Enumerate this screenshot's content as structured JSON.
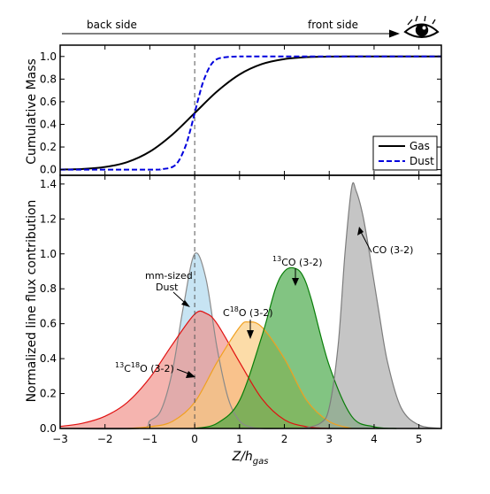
{
  "header": {
    "back_label": "back side",
    "front_label": "front side",
    "eye_icon": "eye-icon"
  },
  "chart_data": [
    {
      "type": "line",
      "panel": "top",
      "ylabel": "Cumulative Mass",
      "xlim": [
        -3,
        5.5
      ],
      "ylim": [
        -0.05,
        1.1
      ],
      "yticks": [
        "0.0",
        "0.2",
        "0.4",
        "0.6",
        "0.8",
        "1.0"
      ],
      "grid": false,
      "legend_position": "bottom-right",
      "series": [
        {
          "name": "Gas",
          "style": "solid",
          "color": "#000000",
          "x": [
            -3,
            -2.5,
            -2,
            -1.5,
            -1,
            -0.5,
            0,
            0.5,
            1,
            1.5,
            2,
            2.5,
            3,
            3.5,
            4,
            4.5,
            5,
            5.5
          ],
          "y": [
            0.001,
            0.006,
            0.023,
            0.067,
            0.159,
            0.309,
            0.5,
            0.691,
            0.841,
            0.933,
            0.977,
            0.994,
            0.999,
            1.0,
            1.0,
            1.0,
            1.0,
            1.0
          ]
        },
        {
          "name": "Dust",
          "style": "dashed",
          "color": "#0000dd",
          "x": [
            -3,
            -1,
            -0.75,
            -0.5,
            -0.35,
            -0.2,
            -0.1,
            0,
            0.1,
            0.2,
            0.35,
            0.5,
            0.75,
            1,
            1.5,
            5.5
          ],
          "y": [
            0.0,
            0.0,
            0.004,
            0.023,
            0.081,
            0.212,
            0.345,
            0.5,
            0.655,
            0.788,
            0.919,
            0.977,
            0.996,
            1.0,
            1.0,
            1.0
          ]
        }
      ]
    },
    {
      "type": "area",
      "panel": "bottom",
      "xlabel": "Z/h_gas",
      "ylabel": "Normalized line flux contribution",
      "xlim": [
        -3,
        5.5
      ],
      "ylim": [
        0,
        1.45
      ],
      "xticks": [
        "−3",
        "−2",
        "−1",
        "0",
        "1",
        "2",
        "3",
        "4",
        "5"
      ],
      "yticks": [
        "0.0",
        "0.2",
        "0.4",
        "0.6",
        "0.8",
        "1.0",
        "1.2",
        "1.4"
      ],
      "grid": false,
      "reference_line_x": 0,
      "series": [
        {
          "key": "dust",
          "fill": "#a9d6ec",
          "stroke": "#8a8a8a",
          "x": [
            -3,
            -1.25,
            -1,
            -0.75,
            -0.5,
            -0.25,
            0,
            0.25,
            0.5,
            0.75,
            1,
            1.25,
            1.5,
            2
          ],
          "y": [
            0,
            0,
            0.044,
            0.105,
            0.325,
            0.7,
            1.0,
            0.86,
            0.46,
            0.17,
            0.044,
            0.008,
            0,
            0
          ]
        },
        {
          "key": "c13c18o",
          "fill": "#f08c84",
          "stroke": "#e01010",
          "x": [
            -3,
            -2.5,
            -2,
            -1.5,
            -1,
            -0.5,
            0,
            0.25,
            0.5,
            1,
            1.5,
            2,
            2.5,
            3
          ],
          "y": [
            0.012,
            0.03,
            0.07,
            0.15,
            0.29,
            0.48,
            0.655,
            0.66,
            0.6,
            0.38,
            0.17,
            0.05,
            0.01,
            0
          ]
        },
        {
          "key": "c18o",
          "fill": "#fbc97a",
          "stroke": "#f0a020",
          "x": [
            -1.5,
            -1,
            -0.5,
            0,
            0.5,
            1,
            1.2,
            1.5,
            2,
            2.5,
            3,
            3.5
          ],
          "y": [
            0,
            0.01,
            0.04,
            0.15,
            0.38,
            0.58,
            0.61,
            0.58,
            0.4,
            0.16,
            0.04,
            0
          ]
        },
        {
          "key": "c13o",
          "fill": "#3fa43f",
          "stroke": "#087d08",
          "x": [
            0,
            0.5,
            1,
            1.5,
            1.8,
            2,
            2.2,
            2.4,
            2.6,
            3,
            3.5,
            4,
            4.5
          ],
          "y": [
            0,
            0.03,
            0.16,
            0.53,
            0.8,
            0.9,
            0.92,
            0.88,
            0.74,
            0.36,
            0.07,
            0.01,
            0
          ]
        },
        {
          "key": "co",
          "fill": "#a6a6a6",
          "stroke": "#7d7d7d",
          "x": [
            2.4,
            2.8,
            3,
            3.2,
            3.35,
            3.5,
            3.6,
            3.75,
            3.9,
            4.1,
            4.3,
            4.6,
            5,
            5.5
          ],
          "y": [
            0,
            0.03,
            0.12,
            0.48,
            1.0,
            1.38,
            1.36,
            1.22,
            1.0,
            0.68,
            0.38,
            0.12,
            0.02,
            0
          ]
        }
      ],
      "annotations": [
        {
          "key": "co",
          "text": "CO (3-2)"
        },
        {
          "key": "c13o",
          "sup": "13",
          "text": "CO (3-2)"
        },
        {
          "key": "c18o",
          "prefix": "C",
          "sup": "18",
          "text": "O (3-2)"
        },
        {
          "key": "dust",
          "text": "mm-sized",
          "text2": "Dust"
        },
        {
          "key": "c13c18o",
          "sup": "13",
          "mid": "C",
          "sup2": "18",
          "text": "O (3-2)"
        }
      ]
    }
  ]
}
